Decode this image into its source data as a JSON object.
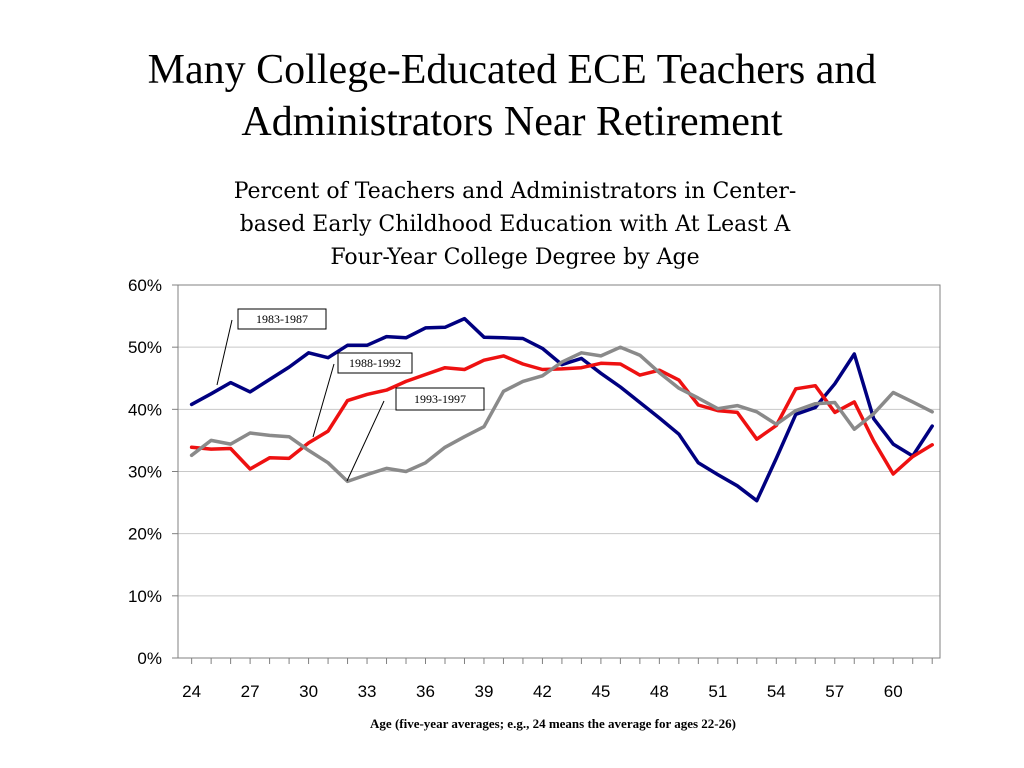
{
  "slide": {
    "title_line1": "Many College-Educated ECE Teachers and",
    "title_line2": "Administrators Near Retirement"
  },
  "chart_data": {
    "type": "line",
    "title_lines": [
      "Percent of Teachers and Administrators in Center-",
      "based Early Childhood Education with At Least A",
      "Four-Year College Degree by Age"
    ],
    "xlabel": "Age (five-year averages; e.g., 24 means the average for ages 22-26)",
    "ylabel": "",
    "x": [
      24,
      25,
      26,
      27,
      28,
      29,
      30,
      31,
      32,
      33,
      34,
      35,
      36,
      37,
      38,
      39,
      40,
      41,
      42,
      43,
      44,
      45,
      46,
      47,
      48,
      49,
      50,
      51,
      52,
      53,
      54,
      55,
      56,
      57,
      58,
      59,
      60,
      61,
      62
    ],
    "xlim": [
      23.3,
      62.4
    ],
    "ylim": [
      0,
      60
    ],
    "x_ticks": [
      24,
      27,
      30,
      33,
      36,
      39,
      42,
      45,
      48,
      51,
      54,
      57,
      60
    ],
    "y_ticks": [
      0,
      10,
      20,
      30,
      40,
      50,
      60
    ],
    "y_tick_labels": [
      "0%",
      "10%",
      "20%",
      "30%",
      "40%",
      "50%",
      "60%"
    ],
    "grid": "horizontal",
    "series": [
      {
        "name": "1983-1987",
        "color": "#000080",
        "values": [
          40.8,
          42.5,
          44.3,
          42.8,
          44.8,
          46.8,
          49.1,
          48.3,
          50.3,
          50.3,
          51.7,
          51.5,
          53.1,
          53.2,
          54.6,
          51.6,
          51.5,
          51.4,
          49.8,
          47.2,
          48.2,
          45.8,
          43.6,
          41.1,
          38.6,
          36.0,
          31.4,
          29.5,
          27.7,
          25.3,
          32.1,
          39.2,
          40.3,
          44.1,
          48.9,
          38.5,
          34.4,
          32.5,
          37.3
        ]
      },
      {
        "name": "1988-1992",
        "color": "#ee1111",
        "values": [
          33.9,
          33.6,
          33.7,
          30.4,
          32.2,
          32.1,
          34.6,
          36.5,
          41.4,
          42.4,
          43.1,
          44.5,
          45.6,
          46.7,
          46.4,
          47.9,
          48.6,
          47.3,
          46.4,
          46.5,
          46.7,
          47.4,
          47.3,
          45.5,
          46.3,
          44.7,
          40.7,
          39.8,
          39.5,
          35.2,
          37.4,
          43.3,
          43.8,
          39.5,
          41.2,
          34.9,
          29.6,
          32.4,
          34.3
        ]
      },
      {
        "name": "1993-1997",
        "color": "#8a8a8a",
        "values": [
          32.6,
          35.0,
          34.4,
          36.2,
          35.8,
          35.6,
          33.4,
          31.4,
          28.4,
          29.5,
          30.5,
          30.0,
          31.4,
          33.9,
          35.6,
          37.2,
          42.9,
          44.5,
          45.4,
          47.6,
          49.1,
          48.6,
          50.0,
          48.7,
          45.9,
          43.4,
          41.8,
          40.1,
          40.6,
          39.6,
          37.6,
          39.8,
          40.9,
          41.1,
          36.8,
          39.3,
          42.7,
          41.2,
          39.6
        ]
      }
    ]
  }
}
